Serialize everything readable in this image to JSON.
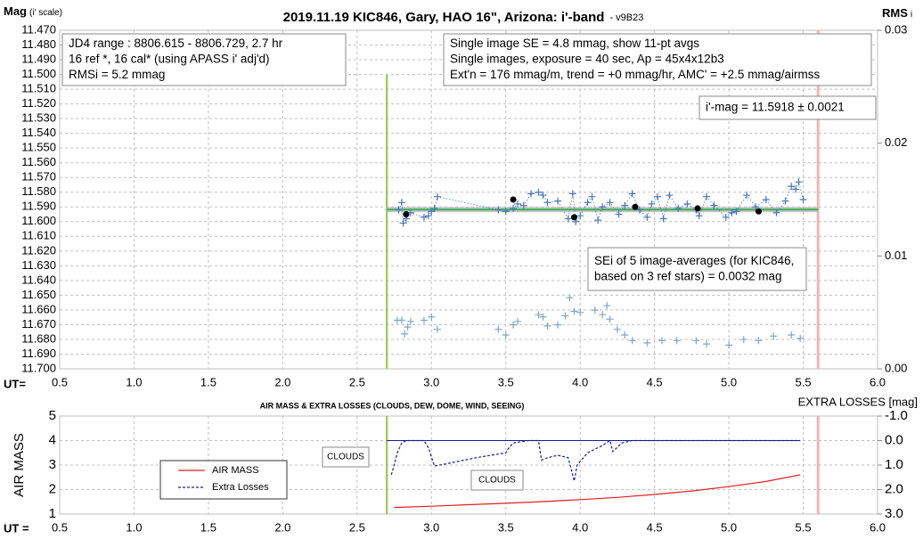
{
  "chart_data": [
    {
      "type": "scatter",
      "title": "2019.11.19 KIC846, Gary, HAO 16\", Arizona: i'-band",
      "subtitle": "- v9B23",
      "ylabel": "Mag",
      "ylabel_unit": "(i' scale)",
      "y2label": "RMS",
      "y2label_sub": "i",
      "xlabel": "UT=",
      "xlim": [
        0.5,
        6.0
      ],
      "xticks": [
        0.5,
        {
          "value": 1,
          "label": "1.0"
        },
        1.5,
        {
          "value": 2,
          "label": "2.0"
        },
        2.5,
        {
          "value": 3,
          "label": "3.0"
        },
        3.5,
        {
          "value": 4,
          "label": "4.0"
        },
        4.5,
        {
          "value": 5,
          "label": "5.0"
        },
        5.5,
        {
          "value": 6,
          "label": "6.0"
        }
      ],
      "ylim": [
        11.47,
        11.7
      ],
      "y_inverted": true,
      "yticks": [
        {
          "value": 11.47,
          "label": "11.470"
        },
        {
          "value": 11.48,
          "label": "11.480"
        },
        {
          "value": 11.49,
          "label": "11.490"
        },
        {
          "value": 11.5,
          "label": "11.500"
        },
        {
          "value": 11.51,
          "label": "11.510"
        },
        {
          "value": 11.52,
          "label": "11.520"
        },
        {
          "value": 11.53,
          "label": "11.530"
        },
        {
          "value": 11.54,
          "label": "11.540"
        },
        {
          "value": 11.55,
          "label": "11.550"
        },
        {
          "value": 11.56,
          "label": "11.560"
        },
        {
          "value": 11.57,
          "label": "11.570"
        },
        {
          "value": 11.58,
          "label": "11.580"
        },
        {
          "value": 11.59,
          "label": "11.590"
        },
        {
          "value": 11.6,
          "label": "11.600"
        },
        {
          "value": 11.61,
          "label": "11.610"
        },
        {
          "value": 11.62,
          "label": "11.620"
        },
        {
          "value": 11.63,
          "label": "11.630"
        },
        {
          "value": 11.64,
          "label": "11.640"
        },
        {
          "value": 11.65,
          "label": "11.650"
        },
        {
          "value": 11.66,
          "label": "11.660"
        },
        {
          "value": 11.67,
          "label": "11.670"
        },
        {
          "value": 11.68,
          "label": "11.680"
        },
        {
          "value": 11.69,
          "label": "11.690"
        },
        {
          "value": 11.7,
          "label": "11.700"
        }
      ],
      "y2lim": [
        0,
        0.03
      ],
      "y2ticks": [
        {
          "value": 0,
          "label": "0.00"
        },
        0.01,
        0.02,
        0.03
      ],
      "grid": true,
      "vlines": [
        2.7,
        5.6
      ],
      "vline_colors": [
        "#8cc63f",
        "#f4b4b4"
      ],
      "hline": 11.5918,
      "hline_color": "#3fae5a",
      "series": [
        {
          "color": "#4a78b8",
          "marker": "plus",
          "line": "dotted",
          "x": [
            2.78,
            2.8,
            2.81,
            2.83,
            2.86,
            2.95,
            2.98,
            3.0,
            3.02,
            3.04,
            3.45,
            3.5,
            3.55,
            3.58,
            3.62,
            3.67,
            3.72,
            3.75,
            3.78,
            3.85,
            3.92,
            3.95,
            3.97,
            4.0,
            4.05,
            4.08,
            4.12,
            4.15,
            4.2,
            4.26,
            4.3,
            4.35,
            4.4,
            4.45,
            4.48,
            4.52,
            4.56,
            4.6,
            4.66,
            4.72,
            4.78,
            4.8,
            4.85,
            4.9,
            4.98,
            5.02,
            5.05,
            5.12,
            5.18,
            5.25,
            5.32,
            5.38,
            5.42,
            5.45,
            5.47,
            5.5
          ],
          "values": [
            11.592,
            11.587,
            11.601,
            11.598,
            11.594,
            11.597,
            11.596,
            11.593,
            11.591,
            11.583,
            11.592,
            11.593,
            11.591,
            11.588,
            11.589,
            11.581,
            11.58,
            11.582,
            11.587,
            11.586,
            11.598,
            11.581,
            11.6,
            11.596,
            11.587,
            11.583,
            11.599,
            11.59,
            11.587,
            11.595,
            11.589,
            11.581,
            11.592,
            11.597,
            11.588,
            11.583,
            11.598,
            11.582,
            11.591,
            11.588,
            11.592,
            11.596,
            11.583,
            11.589,
            11.597,
            11.594,
            11.593,
            11.582,
            11.59,
            11.585,
            11.594,
            11.586,
            11.576,
            11.578,
            11.573,
            11.585
          ]
        },
        {
          "color": "#000000",
          "marker": "dot",
          "line": "none",
          "x": [
            2.83,
            3.55,
            3.96,
            4.37,
            4.79,
            5.2
          ],
          "values": [
            11.595,
            11.585,
            11.597,
            11.59,
            11.591,
            11.593
          ]
        },
        {
          "color": "#7fa7c9",
          "marker": "plus",
          "line": "none",
          "axis": "y2",
          "x": [
            2.77,
            2.8,
            2.82,
            2.84,
            2.86,
            2.95,
            3.0,
            3.04,
            3.45,
            3.5,
            3.55,
            3.58,
            3.72,
            3.75,
            3.78,
            3.85,
            3.9,
            3.93,
            3.96,
            4.0,
            4.1,
            4.15,
            4.18,
            4.2,
            4.25,
            4.3,
            4.35,
            4.45,
            4.55,
            4.65,
            4.78,
            4.85,
            5.0,
            5.1,
            5.2,
            5.3,
            5.42,
            5.48
          ],
          "values": [
            0.0043,
            0.0043,
            0.0031,
            0.0037,
            0.0042,
            0.0043,
            0.0046,
            0.0035,
            0.0035,
            0.003,
            0.0039,
            0.0042,
            0.0048,
            0.0046,
            0.0038,
            0.0039,
            0.0047,
            0.0063,
            0.0051,
            0.005,
            0.0052,
            0.0048,
            0.0056,
            0.0044,
            0.0035,
            0.003,
            0.0025,
            0.0023,
            0.0025,
            0.0025,
            0.0025,
            0.0022,
            0.0021,
            0.0026,
            0.0025,
            0.0029,
            0.003,
            0.0027
          ]
        }
      ],
      "annotations": [
        [
          "JD4 range : 8806.615 - 8806.729, 2.7  hr",
          "16 ref *, 16 cal* (using APASS i' adj'd)",
          "RMSi = 5.2 mmag"
        ],
        [
          "Single image SE = 4.8 mmag, show 11-pt avgs",
          "Single images, exposure = 40 sec, Ap = 45x4x12b3",
          "Ext'n = 176 mmag/m, trend = +0 mmag/hr, AMC' = +2.5 mmag/airmss"
        ],
        [
          "i'-mag = 11.5918 ± 0.0021"
        ],
        [
          "SEi of 5 image-averages (for KIC846,",
          "based on 3 ref stars) = 0.0032 mag"
        ]
      ]
    },
    {
      "type": "line",
      "title": "AIR MASS & EXTRA LOSSES (CLOUDS, DEW, DOME, WIND, SEEING)",
      "ylabel": "AIR MASS",
      "y2label": "EXTRA LOSSES [mag]",
      "xlabel": "UT =",
      "xlim": [
        0.5,
        6.0
      ],
      "xticks": [
        0.5,
        {
          "value": 1,
          "label": "1.0"
        },
        1.5,
        {
          "value": 2,
          "label": "2.0"
        },
        2.5,
        {
          "value": 3,
          "label": "3.0"
        },
        3.5,
        {
          "value": 4,
          "label": "4.0"
        },
        4.5,
        {
          "value": 5,
          "label": "5.0"
        },
        5.5,
        {
          "value": 6,
          "label": "6.0"
        }
      ],
      "ylim": [
        1,
        5
      ],
      "yticks": [
        1,
        2,
        3,
        4,
        5
      ],
      "y2lim": [
        -1,
        3
      ],
      "y2_inverted": true,
      "y2ticks": [
        {
          "value": -1,
          "label": "-1.0"
        },
        {
          "value": 0,
          "label": "0.0"
        },
        {
          "value": 1,
          "label": "1.0"
        },
        {
          "value": 2,
          "label": "2.0"
        },
        {
          "value": 3,
          "label": "3.0"
        }
      ],
      "grid": true,
      "vlines": [
        2.7,
        5.6
      ],
      "vline_colors": [
        "#8cc63f",
        "#f4b4b4"
      ],
      "y2_reference": 0,
      "legend": "lower-left",
      "series": [
        {
          "name": "AIR MASS",
          "color": "#e02020",
          "line": "solid",
          "x": [
            2.75,
            3.0,
            3.25,
            3.5,
            3.75,
            4.0,
            4.25,
            4.5,
            4.75,
            5.0,
            5.25,
            5.48
          ],
          "values": [
            1.27,
            1.32,
            1.38,
            1.44,
            1.51,
            1.59,
            1.68,
            1.8,
            1.94,
            2.12,
            2.33,
            2.6
          ]
        },
        {
          "name": "Extra Losses",
          "color": "#1a1a9c",
          "line": "dashed",
          "axis": "y2",
          "x": [
            2.73,
            2.75,
            2.77,
            2.8,
            2.83,
            2.95,
            2.98,
            3.02,
            3.1,
            3.3,
            3.5,
            3.52,
            3.55,
            3.65,
            3.72,
            3.74,
            3.78,
            3.85,
            3.92,
            3.96,
            3.98,
            4.05,
            4.15,
            4.2,
            4.22,
            4.28,
            4.35,
            4.6,
            5.0,
            5.48
          ],
          "values": [
            1.4,
            1.0,
            0.5,
            0.1,
            0.0,
            0.0,
            0.3,
            1.04,
            0.95,
            0.7,
            0.5,
            0.3,
            0.1,
            0.0,
            0.0,
            0.8,
            0.7,
            0.6,
            0.7,
            1.65,
            1.0,
            0.5,
            0.2,
            0.0,
            0.45,
            0.1,
            0.0,
            0.0,
            0.0,
            0.0
          ]
        }
      ],
      "annotations": [
        [
          "CLOUDS"
        ],
        [
          "CLOUDS"
        ]
      ]
    }
  ]
}
